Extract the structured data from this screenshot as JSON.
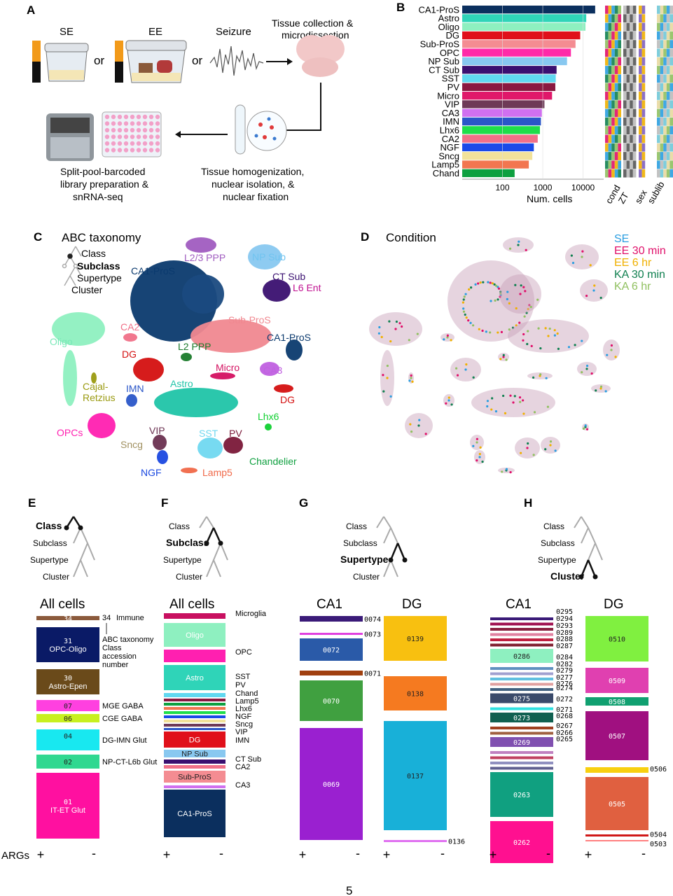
{
  "panel_letters": {
    "a": "A",
    "b": "B",
    "c": "C",
    "d": "D",
    "e": "E",
    "f": "F",
    "g": "G",
    "h": "H"
  },
  "panel_a": {
    "se": "SE",
    "ee": "EE",
    "or1": "or",
    "or2": "or",
    "seizure": "Seizure",
    "tissue1": "Tissue collection &",
    "tissue2": "microdissection",
    "homog1": "Tissue homogenization,",
    "homog2": "nuclear isolation, &",
    "homog3": "nuclear fixation",
    "split1": "Split-pool-barcoded",
    "split2": "library preparation &",
    "split3": "snRNA-seq"
  },
  "panel_b": {
    "xlabel": "Num. cells",
    "ticks": [
      "100",
      "1000",
      "10000"
    ],
    "meta_labels": [
      "cond",
      "ZT",
      "sex",
      "sublib"
    ]
  },
  "chart_data": {
    "type": "bar",
    "orientation": "horizontal",
    "xscale": "log",
    "xlabel": "Num. cells",
    "categories": [
      "CA1-ProS",
      "Astro",
      "Oligo",
      "DG",
      "Sub-ProS",
      "OPC",
      "NP Sub",
      "CT Sub",
      "SST",
      "PV",
      "Micro",
      "VIP",
      "CA3",
      "IMN",
      "Lhx6",
      "CA2",
      "NGF",
      "Sncg",
      "Lamp5",
      "Chand"
    ],
    "values": [
      20000,
      12000,
      11500,
      8500,
      6500,
      5000,
      4000,
      2200,
      2100,
      2050,
      1700,
      1100,
      950,
      900,
      850,
      750,
      600,
      550,
      450,
      200
    ],
    "colors": [
      "#0b2f5e",
      "#2fd4b8",
      "#8ef0c0",
      "#e0101a",
      "#f48c92",
      "#ff2aa8",
      "#88c8f0",
      "#3a0f70",
      "#60d8f0",
      "#8a1840",
      "#e0186a",
      "#6e3a58",
      "#d070f0",
      "#2a56c8",
      "#1ede4a",
      "#f07088",
      "#1a4ae8",
      "#f2e29a",
      "#f27650",
      "#0ea040"
    ]
  },
  "panel_c": {
    "title": "ABC taxonomy",
    "levels": [
      "Class",
      "Subclass",
      "Supertype",
      "Cluster"
    ],
    "labels": [
      {
        "t": "CA1-ProS",
        "c": "#0b3a6e"
      },
      {
        "t": "L2/3 PPP",
        "c": "#a05cc0"
      },
      {
        "t": "NP Sub",
        "c": "#70c4f0"
      },
      {
        "t": "CT Sub",
        "c": "#3a1070"
      },
      {
        "t": "L6 Ent",
        "c": "#c01090"
      },
      {
        "t": "Sub-ProS",
        "c": "#f08890"
      },
      {
        "t": "CA1-ProS",
        "c": "#0b3a6e"
      },
      {
        "t": "CA2",
        "c": "#f07088"
      },
      {
        "t": "Oligo",
        "c": "#7ae8b8"
      },
      {
        "t": "DG",
        "c": "#d41010"
      },
      {
        "t": "L2 PPP",
        "c": "#1a7a2a"
      },
      {
        "t": "Micro",
        "c": "#d41060"
      },
      {
        "t": "CA3",
        "c": "#c060e0"
      },
      {
        "t": "Cajal-",
        "c": "#9a9a10"
      },
      {
        "t": "Retzius",
        "c": "#9a9a10"
      },
      {
        "t": "IMN",
        "c": "#2a56c8"
      },
      {
        "t": "Astro",
        "c": "#20c4a8"
      },
      {
        "t": "DG",
        "c": "#d41010"
      },
      {
        "t": "Lhx6",
        "c": "#10d030"
      },
      {
        "t": "OPCs",
        "c": "#ff20b0"
      },
      {
        "t": "Sncg",
        "c": "#a09060"
      },
      {
        "t": "VIP",
        "c": "#6a3050"
      },
      {
        "t": "SST",
        "c": "#70d8f0"
      },
      {
        "t": "PV",
        "c": "#7a1838"
      },
      {
        "t": "NGF",
        "c": "#1a48e0"
      },
      {
        "t": "Chandelier",
        "c": "#10a040"
      },
      {
        "t": "Lamp5",
        "c": "#f06848"
      }
    ]
  },
  "panel_d": {
    "title": "Condition",
    "legend": [
      {
        "t": "SE",
        "c": "#2a9ee0"
      },
      {
        "t": "EE 30 min",
        "c": "#e0106a"
      },
      {
        "t": "EE 6 hr",
        "c": "#f0b000"
      },
      {
        "t": "KA 30 min",
        "c": "#108050"
      },
      {
        "t": "KA 6 hr",
        "c": "#90c060"
      }
    ]
  },
  "tree_levels": [
    "Class",
    "Subclass",
    "Supertype",
    "Cluster"
  ],
  "panel_e": {
    "title": "All cells",
    "blocks": [
      {
        "code": "34",
        "name": "Immune",
        "c": "#8b5a3c"
      },
      {
        "code": "31",
        "name": "OPC-Oligo",
        "c": "#0a1a66"
      },
      {
        "code": "30",
        "name": "Astro-Epen",
        "c": "#6a4a1a"
      },
      {
        "code": "07",
        "name": "MGE GABA",
        "c": "#ff40e0"
      },
      {
        "code": "06",
        "name": "CGE GABA",
        "c": "#c8f020"
      },
      {
        "code": "04",
        "name": "DG-IMN Glut",
        "c": "#18e8f0"
      },
      {
        "code": "02",
        "name": "NP-CT-L6b Glut",
        "c": "#30d890"
      },
      {
        "code": "01",
        "name": "IT-ET Glut",
        "c": "#ff10a0"
      }
    ],
    "note1": "ABC taxonomy",
    "note2": "Class",
    "note3": "accession",
    "note4": "number"
  },
  "panel_f": {
    "title": "All cells",
    "labels": [
      "Microglia",
      "Oligo",
      "OPC",
      "Astro",
      "SST",
      "PV",
      "Chand",
      "Lamp5",
      "Lhx6",
      "NGF",
      "Sncg",
      "VIP",
      "IMN",
      "DG",
      "NP Sub",
      "CT Sub",
      "CA2",
      "Sub-ProS",
      "CA3",
      "CA1-ProS"
    ]
  },
  "panel_g": {
    "left_title": "CA1",
    "right_title": "DG",
    "left_codes": [
      "0074",
      "0073",
      "0072",
      "0071",
      "0070",
      "0069"
    ],
    "right_codes": [
      "0139",
      "0138",
      "0137",
      "0136"
    ]
  },
  "panel_h": {
    "left_title": "CA1",
    "right_title": "DG",
    "left_codes": [
      "0295",
      "0294",
      "0293",
      "0289",
      "0288",
      "0287",
      "0286",
      "0284",
      "0282",
      "0279",
      "0277",
      "0276",
      "0275",
      "0274",
      "0273",
      "0272",
      "0271",
      "0269",
      "0268",
      "0267",
      "0266",
      "0265",
      "0263",
      "0262"
    ],
    "right_codes": [
      "0510",
      "0509",
      "0508",
      "0507",
      "0506",
      "0505",
      "0504",
      "0503"
    ]
  },
  "args_label": "ARGs",
  "plus": "+",
  "minus": "-",
  "page_number": "5"
}
